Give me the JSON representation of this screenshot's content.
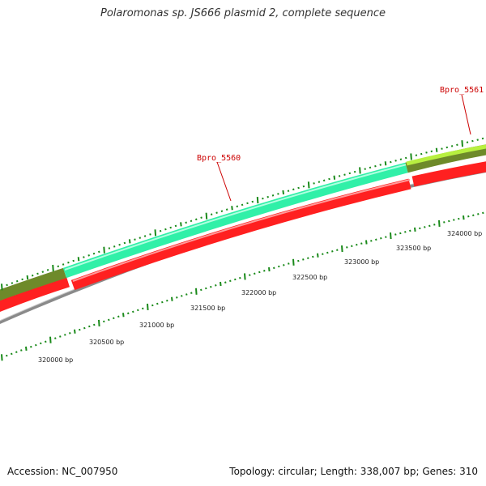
{
  "title": "Polaromonas sp. JS666 plasmid 2, complete sequence",
  "footer": {
    "accession": "Accession: NC_007950",
    "stats": "Topology: circular; Length: 338,007 bp; Genes: 310"
  },
  "colors": {
    "backbone": "#8a8a8a",
    "tick": "#1a8a1a",
    "label_red": "#cc0000",
    "gene_red": "#ff2020",
    "gene_cyan": "#30f0a8",
    "gene_olive": "#6e8a2a",
    "gene_lime": "#b8f040"
  },
  "scale_labels": [
    {
      "bp": 320000,
      "text": "320000 bp"
    },
    {
      "bp": 320500,
      "text": "320500 bp"
    },
    {
      "bp": 321000,
      "text": "321000 bp"
    },
    {
      "bp": 321500,
      "text": "321500 bp"
    },
    {
      "bp": 322000,
      "text": "322000 bp"
    },
    {
      "bp": 322500,
      "text": "322500 bp"
    },
    {
      "bp": 323000,
      "text": "323000 bp"
    },
    {
      "bp": 323500,
      "text": "323500 bp"
    },
    {
      "bp": 324000,
      "text": "324000 bp"
    }
  ],
  "gene_labels": [
    {
      "name": "Bpro_5560"
    },
    {
      "name": "Bpro_5561"
    }
  ]
}
